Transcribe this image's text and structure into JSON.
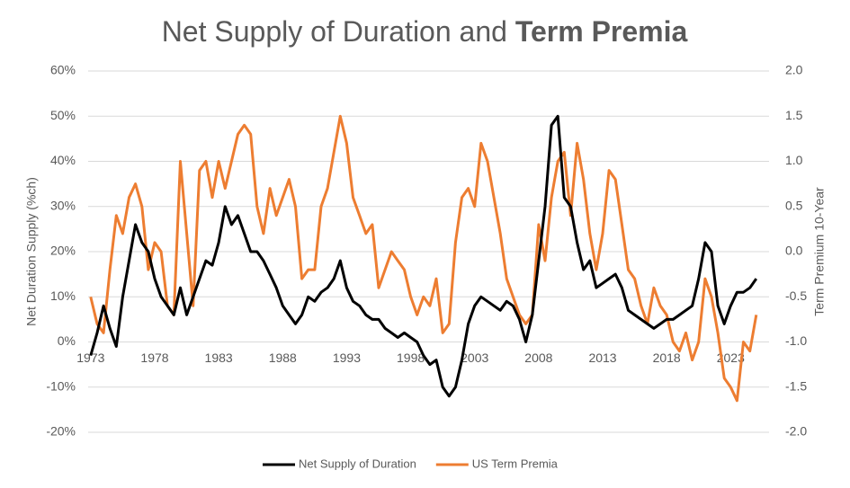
{
  "chart_data": {
    "type": "line",
    "title": "Net Supply of Duration and",
    "title_bold": "Term Premia",
    "y_label": "Net Duration Supply (%ch)",
    "y2_label": "Term Premium 10-Year",
    "xlim": [
      1972.8,
      2026
    ],
    "xticks": [
      1973,
      1978,
      1983,
      1988,
      1993,
      1998,
      2003,
      2008,
      2013,
      2018,
      2023
    ],
    "ylim": [
      -20,
      60
    ],
    "yticks": [
      {
        "value": -20,
        "label": "-20%"
      },
      {
        "value": -10,
        "label": "-10%"
      },
      {
        "value": 0,
        "label": "0%"
      },
      {
        "value": 10,
        "label": "10%"
      },
      {
        "value": 20,
        "label": "20%"
      },
      {
        "value": 30,
        "label": "30%"
      },
      {
        "value": 40,
        "label": "40%"
      },
      {
        "value": 50,
        "label": "50%"
      },
      {
        "value": 60,
        "label": "60%"
      }
    ],
    "y2lim": [
      -2,
      2
    ],
    "y2ticks": [
      {
        "value": -2,
        "label": "-2.0"
      },
      -1.5,
      {
        "value": -1,
        "label": "-1.0"
      },
      -0.5,
      {
        "value": 0,
        "label": "0.0"
      },
      0.5,
      {
        "value": 1,
        "label": "1.0"
      },
      1.5,
      {
        "value": 2,
        "label": "2.0"
      }
    ],
    "grid": true,
    "legend": "bottom",
    "x": [
      1973,
      1973.5,
      1974,
      1974.5,
      1975,
      1975.5,
      1976,
      1976.5,
      1977,
      1977.5,
      1978,
      1978.5,
      1979,
      1979.5,
      1980,
      1980.5,
      1981,
      1981.5,
      1982,
      1982.5,
      1983,
      1983.5,
      1984,
      1984.5,
      1985,
      1985.5,
      1986,
      1986.5,
      1987,
      1987.5,
      1988,
      1988.5,
      1989,
      1989.5,
      1990,
      1990.5,
      1991,
      1991.5,
      1992,
      1992.5,
      1993,
      1993.5,
      1994,
      1994.5,
      1995,
      1995.5,
      1996,
      1996.5,
      1997,
      1997.5,
      1998,
      1998.5,
      1999,
      1999.5,
      2000,
      2000.5,
      2001,
      2001.5,
      2002,
      2002.5,
      2003,
      2003.5,
      2004,
      2004.5,
      2005,
      2005.5,
      2006,
      2006.5,
      2007,
      2007.5,
      2008,
      2008.5,
      2009,
      2009.5,
      2010,
      2010.5,
      2011,
      2011.5,
      2012,
      2012.5,
      2013,
      2013.5,
      2014,
      2014.5,
      2015,
      2015.5,
      2016,
      2016.5,
      2017,
      2017.5,
      2018,
      2018.5,
      2019,
      2019.5,
      2020,
      2020.5,
      2021,
      2021.5,
      2022,
      2022.5,
      2023,
      2023.5,
      2024,
      2024.5,
      2025
    ],
    "series": [
      {
        "name": "Net Supply of Duration",
        "color": "#000000",
        "axis": "y",
        "values": [
          -3,
          2,
          8,
          3,
          -1,
          10,
          18,
          26,
          22,
          20,
          14,
          10,
          8,
          6,
          12,
          6,
          10,
          14,
          18,
          17,
          22,
          30,
          26,
          28,
          24,
          20,
          20,
          18,
          15,
          12,
          8,
          6,
          4,
          6,
          10,
          9,
          11,
          12,
          14,
          18,
          12,
          9,
          8,
          6,
          5,
          5,
          3,
          2,
          1,
          2,
          1,
          0,
          -3,
          -5,
          -4,
          -10,
          -12,
          -10,
          -4,
          4,
          8,
          10,
          9,
          8,
          7,
          9,
          8,
          5,
          0,
          6,
          18,
          30,
          48,
          50,
          32,
          30,
          22,
          16,
          18,
          12,
          13,
          14,
          15,
          12,
          7,
          6,
          5,
          4,
          3,
          4,
          5,
          5,
          6,
          7,
          8,
          14,
          22,
          20,
          8,
          4,
          8,
          11,
          11,
          12,
          14
        ]
      },
      {
        "name": "US Term Premia",
        "color": "#ed7d31",
        "axis": "y2",
        "values": [
          -0.5,
          -0.8,
          -0.9,
          -0.2,
          0.4,
          0.2,
          0.6,
          0.75,
          0.5,
          -0.2,
          0.1,
          0,
          -0.6,
          -0.7,
          1,
          0.2,
          -0.6,
          0.9,
          1,
          0.6,
          1,
          0.7,
          1,
          1.3,
          1.4,
          1.3,
          0.5,
          0.2,
          0.7,
          0.4,
          0.6,
          0.8,
          0.5,
          -0.3,
          -0.2,
          -0.2,
          0.5,
          0.7,
          1.1,
          1.5,
          1.2,
          0.6,
          0.4,
          0.2,
          0.3,
          -0.4,
          -0.2,
          0,
          -0.1,
          -0.2,
          -0.5,
          -0.7,
          -0.5,
          -0.6,
          -0.3,
          -0.9,
          -0.8,
          0.1,
          0.6,
          0.7,
          0.5,
          1.2,
          1,
          0.6,
          0.2,
          -0.3,
          -0.5,
          -0.7,
          -0.8,
          -0.7,
          0.3,
          -0.1,
          0.6,
          1,
          1.1,
          0.4,
          1.2,
          0.8,
          0.2,
          -0.2,
          0.2,
          0.9,
          0.8,
          0.3,
          -0.2,
          -0.3,
          -0.6,
          -0.8,
          -0.4,
          -0.6,
          -0.7,
          -1,
          -1.1,
          -0.9,
          -1.2,
          -1,
          -0.3,
          -0.5,
          -0.9,
          -1.4,
          -1.5,
          -1.65,
          -1,
          -1.1,
          -0.7
        ]
      }
    ]
  }
}
